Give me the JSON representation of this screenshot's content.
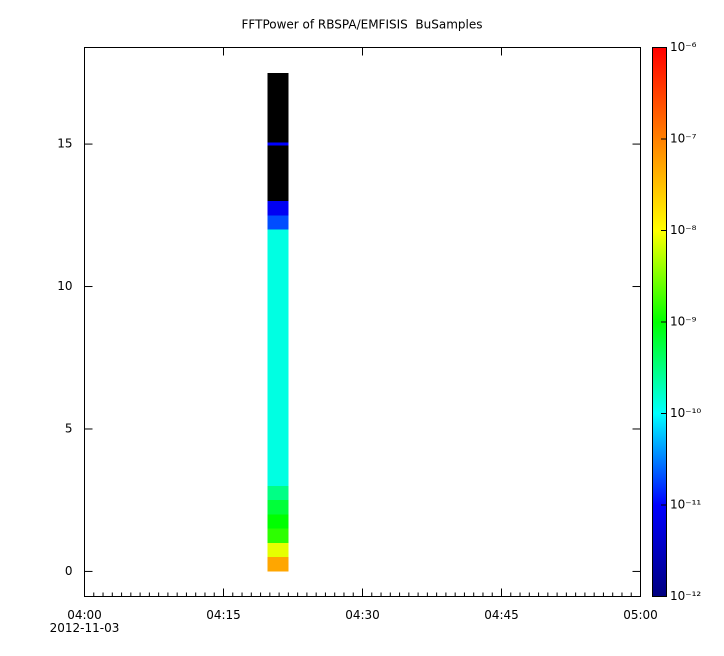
{
  "chart_data": {
    "type": "spectrogram",
    "title": "FFTPower of RBSPA/EMFISIS  BuSamples",
    "xlim": [
      0,
      60
    ],
    "xticks": [
      {
        "value": 0,
        "label": "04:00"
      },
      {
        "value": 15,
        "label": "04:15"
      },
      {
        "value": 30,
        "label": "04:30"
      },
      {
        "value": 45,
        "label": "04:45"
      },
      {
        "value": 60,
        "label": "05:00"
      }
    ],
    "xminorticks": [
      0,
      1,
      2,
      3,
      4,
      5,
      6,
      7,
      8,
      9,
      10,
      11,
      12,
      13,
      14,
      15,
      16,
      17,
      18,
      19,
      20,
      21,
      22,
      23,
      24,
      25,
      26,
      27,
      28,
      29,
      30,
      31,
      32,
      33,
      34,
      35,
      36,
      37,
      38,
      39,
      40,
      41,
      42,
      43,
      44,
      45,
      46,
      47,
      48,
      49,
      50,
      51,
      52,
      53,
      54,
      55,
      56,
      57,
      58,
      59,
      60
    ],
    "x_date": "2012-11-03",
    "ylim": [
      -0.88,
      18.39
    ],
    "yticks": [
      0,
      5,
      10,
      15
    ],
    "xbins": [
      19.75,
      22.0
    ],
    "ybins": [
      0,
      0.5,
      1,
      1.5,
      2,
      2.5,
      3,
      3.5,
      4,
      4.5,
      5,
      5.5,
      6,
      6.5,
      7,
      7.5,
      8,
      8.5,
      9,
      9.5,
      10,
      10.5,
      11,
      11.5,
      12,
      12.5,
      13,
      13.5,
      14,
      14.5,
      14.95,
      15.05,
      15.5,
      16,
      16.5,
      17,
      17.5
    ],
    "values": [
      5e-08,
      8e-09,
      1.5e-09,
      1e-09,
      6e-10,
      3e-10,
      1.3e-10,
      1.3e-10,
      1.3e-10,
      1.3e-10,
      1.3e-10,
      1.3e-10,
      1.3e-10,
      1.3e-10,
      1.3e-10,
      1.3e-10,
      1.3e-10,
      1.3e-10,
      1.3e-10,
      1.3e-10,
      1.3e-10,
      1.3e-10,
      1.3e-10,
      1.3e-10,
      2e-11,
      8e-12,
      5e-13,
      5e-13,
      5e-13,
      5e-13,
      1e-11,
      5e-13,
      5e-13,
      5e-13,
      5e-13,
      5e-13
    ],
    "colorbar": {
      "log": true,
      "clim": [
        1e-12,
        1e-06
      ],
      "colors": [
        "#000080",
        "#0000ff",
        "#00ffff",
        "#00ff00",
        "#ffff00",
        "#ff8000",
        "#ff0000"
      ],
      "under_color": "#000000",
      "ticks": [
        {
          "value": 1e-12,
          "label": "10⁻¹²"
        },
        {
          "value": 1e-11,
          "label": "10⁻¹¹"
        },
        {
          "value": 1e-10,
          "label": "10⁻¹⁰"
        },
        {
          "value": 1e-09,
          "label": "10⁻⁹"
        },
        {
          "value": 1e-08,
          "label": "10⁻⁸"
        },
        {
          "value": 1e-07,
          "label": "10⁻⁷"
        },
        {
          "value": 1e-06,
          "label": "10⁻⁶"
        }
      ]
    }
  }
}
